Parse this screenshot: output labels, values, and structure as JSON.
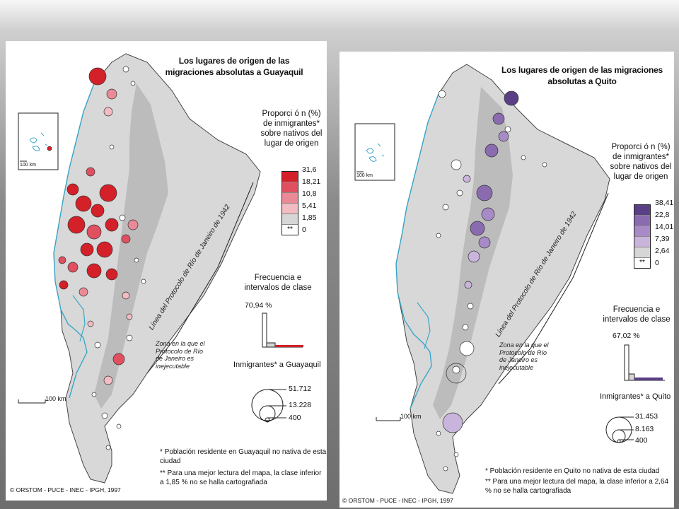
{
  "colors": {
    "map_land": "#d8d8d8",
    "andes": "#bcbcbc",
    "water": "#3aa6c8",
    "gye_accent": "#d42028",
    "uio_accent": "#5b3f86"
  },
  "gye": {
    "title": "Los lugares de origen de las migraciones absolutas a Guayaquil",
    "legend_title": "Proporci ó n (%) de inmigrantes* sobre nativos del lugar de origen",
    "classes": [
      "31,6",
      "18,21",
      "10,8",
      "5,41",
      "1,85",
      "0"
    ],
    "class_colors": [
      "#d42028",
      "#e05060",
      "#ea8a96",
      "#f2bcc2",
      "#d6d6d6",
      "#ffffff"
    ],
    "nodata": "**",
    "freq_title": "Frecuencia e intervalos de clase",
    "freq_value": "70,94 %",
    "immigrants_title": "Inmigrantes* a Guayaquil",
    "circle_values": [
      "51.712",
      "13.228",
      "400"
    ],
    "scale": "100 km",
    "inset_scale": "100 km",
    "zone_text": "Zona en la que el Protocolo de Río de Janeiro es inejecutable",
    "border_text": "Línea del Protocolo de Río de Janeiro de 1942",
    "note1": "* Población residente en Guayaquil no nativa de esta ciudad",
    "note2": "** Para una mejor lectura del mapa, la clase inferior a 1,85 % no se halla cartografiada",
    "credit": "© ORSTOM - PUCE - INEC - IPGH, 1997"
  },
  "uio": {
    "title": "Los lugares de origen de las migraciones absolutas a Quito",
    "legend_title": "Proporci ó n (%) de inmigrantes* sobre nativos del lugar de origen",
    "classes": [
      "38,41",
      "22,8",
      "14,01",
      "7,39",
      "2,64",
      "0"
    ],
    "class_colors": [
      "#5b3f86",
      "#8a6bb0",
      "#a88ac6",
      "#c9b4dc",
      "#d6d6d6",
      "#ffffff"
    ],
    "nodata": "**",
    "freq_title": "Frecuencia e intervalos de clase",
    "freq_value": "67,02 %",
    "immigrants_title": "Inmigrantes* a Quito",
    "circle_values": [
      "31.453",
      "8.163",
      "400"
    ],
    "scale": "100 km",
    "inset_scale": "100 km",
    "zone_text": "Zona en la que el Protocolo de Río de Janeiro es inejecutable",
    "border_text": "Línea del Protocolo de Río de Janeiro de 1942",
    "note1": "* Población residente en Quito no nativa de esta ciudad",
    "note2": "** Para una mejor lectura del mapa, la clase inferior a 2,64 % no se halla cartografiada",
    "credit": "© ORSTOM - PUCE - INEC - IPGH, 1997"
  }
}
